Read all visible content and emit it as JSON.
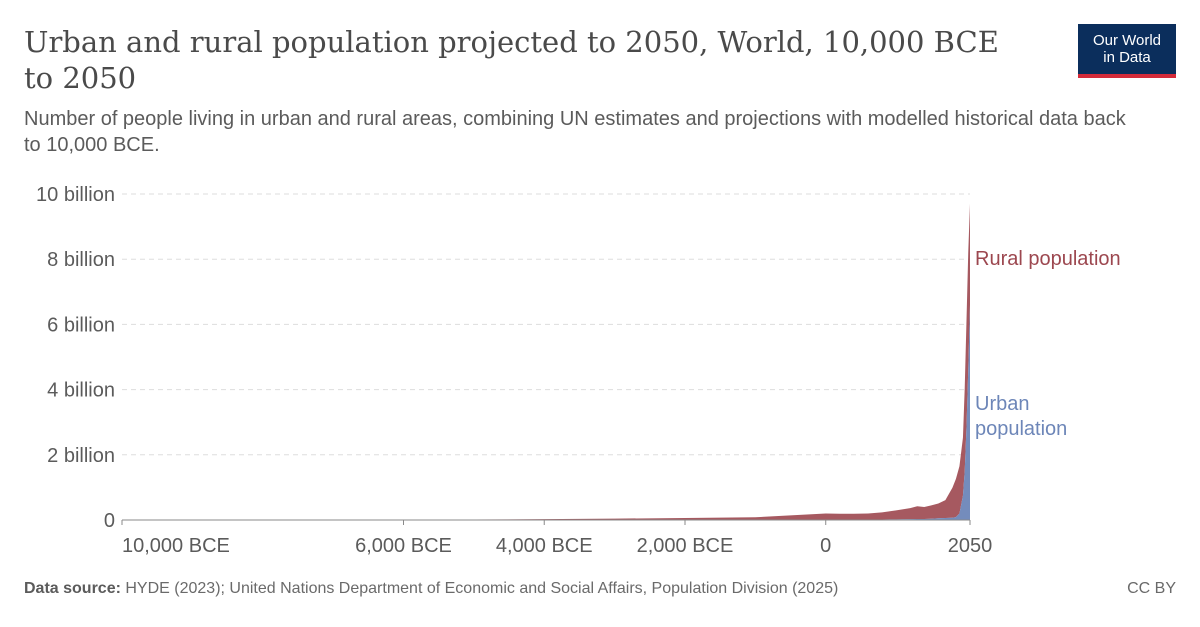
{
  "title": "Urban and rural population projected to 2050, World, 10,000 BCE to 2050",
  "subtitle": "Number of people living in urban and rural areas, combining UN estimates and projections with modelled historical data back to 10,000 BCE.",
  "logo": {
    "line1": "Our World",
    "line2": "in Data"
  },
  "footer": {
    "source_label": "Data source:",
    "source_text": "HYDE (2023); United Nations Department of Economic and Social Affairs, Population Division (2025)",
    "license": "CC BY"
  },
  "chart_data": {
    "type": "area",
    "stacked": true,
    "xlabel": "",
    "ylabel": "",
    "xlim": [
      -10000,
      2050
    ],
    "ylim": [
      0,
      10000000000
    ],
    "grid": "horizontal dashed",
    "y_ticks": [
      {
        "value": 0,
        "label": "0"
      },
      {
        "value": 2000000000,
        "label": "2 billion"
      },
      {
        "value": 4000000000,
        "label": "4 billion"
      },
      {
        "value": 6000000000,
        "label": "6 billion"
      },
      {
        "value": 8000000000,
        "label": "8 billion"
      },
      {
        "value": 10000000000,
        "label": "10 billion"
      }
    ],
    "x_ticks": [
      {
        "value": -10000,
        "label": "10,000 BCE"
      },
      {
        "value": -6000,
        "label": "6,000 BCE"
      },
      {
        "value": -4000,
        "label": "4,000 BCE"
      },
      {
        "value": -2000,
        "label": "2,000 BCE"
      },
      {
        "value": 0,
        "label": "0"
      },
      {
        "value": 2050,
        "label": "2050"
      }
    ],
    "x": [
      -10000,
      -8000,
      -6000,
      -5000,
      -4000,
      -3000,
      -2000,
      -1000,
      0,
      200,
      400,
      600,
      800,
      1000,
      1200,
      1300,
      1400,
      1500,
      1600,
      1700,
      1800,
      1850,
      1900,
      1950,
      1975,
      2000,
      2025,
      2050
    ],
    "series": [
      {
        "name": "Urban population",
        "color": "#6d86b8",
        "values": [
          0,
          0,
          0,
          100000,
          500000,
          1500000,
          3000000,
          5000000,
          10000000,
          10000000,
          10000000,
          10000000,
          15000000,
          20000000,
          25000000,
          30000000,
          30000000,
          40000000,
          55000000,
          60000000,
          70000000,
          90000000,
          200000000,
          750000000,
          1500000000,
          2850000000,
          4600000000,
          6600000000
        ]
      },
      {
        "name": "Rural population",
        "color": "#9c474f",
        "values": [
          4000000,
          5000000,
          8000000,
          15000000,
          25000000,
          40000000,
          60000000,
          80000000,
          190000000,
          180000000,
          180000000,
          190000000,
          220000000,
          275000000,
          340000000,
          390000000,
          370000000,
          410000000,
          450000000,
          550000000,
          920000000,
          1170000000,
          1450000000,
          1780000000,
          2550000000,
          3250000000,
          3600000000,
          3100000000
        ]
      }
    ],
    "labels": {
      "rural": "Rural population",
      "urban_line1": "Urban",
      "urban_line2": "population"
    }
  }
}
